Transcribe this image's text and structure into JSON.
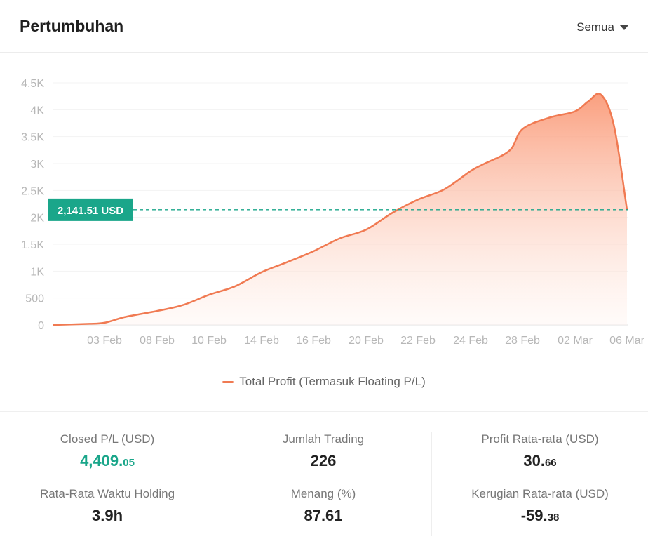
{
  "header": {
    "title": "Pertumbuhan",
    "filter_label": "Semua"
  },
  "colors": {
    "line": "#f07a52",
    "fill_top": "#fa9a78",
    "marker": "#1aa68a",
    "positive": "#1aa68a"
  },
  "chart_data": {
    "type": "area",
    "y_ticks": [
      "0",
      "500",
      "1K",
      "1.5K",
      "2K",
      "2.5K",
      "3K",
      "3.5K",
      "4K",
      "4.5K"
    ],
    "x_ticks": [
      "03 Feb",
      "08 Feb",
      "10 Feb",
      "14 Feb",
      "16 Feb",
      "20 Feb",
      "22 Feb",
      "24 Feb",
      "28 Feb",
      "02 Mar",
      "06 Mar"
    ],
    "ylim": [
      0,
      4500
    ],
    "grid": true,
    "series": [
      {
        "name": "Total Profit (Termasuk Floating P/L)",
        "points": [
          {
            "x": "31 Jan",
            "y": 0
          },
          {
            "x": "02 Feb",
            "y": 20
          },
          {
            "x": "03 Feb",
            "y": 40
          },
          {
            "x": "05 Feb",
            "y": 150
          },
          {
            "x": "08 Feb",
            "y": 260
          },
          {
            "x": "09 Feb",
            "y": 370
          },
          {
            "x": "10 Feb",
            "y": 560
          },
          {
            "x": "12 Feb",
            "y": 720
          },
          {
            "x": "14 Feb",
            "y": 980
          },
          {
            "x": "15 Feb",
            "y": 1170
          },
          {
            "x": "16 Feb",
            "y": 1370
          },
          {
            "x": "18 Feb",
            "y": 1610
          },
          {
            "x": "20 Feb",
            "y": 1770
          },
          {
            "x": "21 Feb",
            "y": 2080
          },
          {
            "x": "22 Feb",
            "y": 2330
          },
          {
            "x": "23 Feb",
            "y": 2520
          },
          {
            "x": "24 Feb",
            "y": 2860
          },
          {
            "x": "25 Feb",
            "y": 2990
          },
          {
            "x": "27 Feb",
            "y": 3240
          },
          {
            "x": "28 Feb",
            "y": 3640
          },
          {
            "x": "01 Mar",
            "y": 3850
          },
          {
            "x": "02 Mar",
            "y": 3970
          },
          {
            "x": "03 Mar",
            "y": 4150
          },
          {
            "x": "04 Mar",
            "y": 4280
          },
          {
            "x": "05 Mar",
            "y": 3700
          },
          {
            "x": "06 Mar",
            "y": 2141.51
          }
        ]
      }
    ],
    "marker": {
      "value": 2141.51,
      "label": "2,141.51 USD"
    }
  },
  "legend": {
    "label": "Total Profit (Termasuk Floating P/L)"
  },
  "stats": {
    "closed_pl": {
      "label": "Closed P/L (USD)",
      "int": "4,409.",
      "dec": "05"
    },
    "jumlah_trading": {
      "label": "Jumlah Trading",
      "value": "226"
    },
    "profit_avg": {
      "label": "Profit Rata-rata (USD)",
      "int": "30.",
      "dec": "66"
    },
    "holding": {
      "label": "Rata-Rata Waktu Holding",
      "value": "3.9h"
    },
    "menang": {
      "label": "Menang (%)",
      "value": "87.61"
    },
    "loss_avg": {
      "label": "Kerugian Rata-rata (USD)",
      "int": "-59.",
      "dec": "38"
    }
  }
}
